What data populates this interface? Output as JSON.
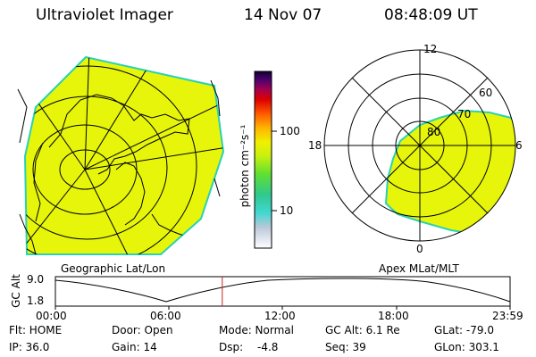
{
  "header": {
    "instrument": "Ultraviolet Imager",
    "date": "14 Nov 07",
    "time": "08:48:09 UT"
  },
  "colorbar": {
    "unit_label": "photon cm⁻²s⁻¹",
    "ticks": [
      "100",
      "10"
    ],
    "scale": "log"
  },
  "left_panel": {
    "caption": "Geographic Lat/Lon"
  },
  "right_panel": {
    "caption": "Apex MLat/MLT",
    "mlt_labels": [
      "12",
      "18",
      "6",
      "0"
    ],
    "mlat_labels": [
      "60",
      "70",
      "80"
    ]
  },
  "timeline": {
    "y_axis_label": "GC Alt",
    "y_ticks": [
      "9.0",
      "1.8"
    ],
    "x_ticks": [
      "00:00",
      "06:00",
      "12:00",
      "18:00",
      "23:59"
    ],
    "current_time_fraction": 0.367,
    "marker_color": "#cc2222"
  },
  "status": {
    "flt": "Flt: HOME",
    "ip": "IP: 36.0",
    "door": "Door: Open",
    "gain": "Gain: 14",
    "mode": "Mode: Normal",
    "dsp": "Dsp:",
    "dsp_value": "-4.8",
    "gc_alt": "GC Alt: 6.1 Re",
    "seq": "Seq: 39",
    "glat": "GLat: -79.0",
    "glon": "GLon: 303.1"
  },
  "colors": {
    "emission": "#e6f50a",
    "emission_edge": "#28d2b4",
    "line": "#000000"
  }
}
